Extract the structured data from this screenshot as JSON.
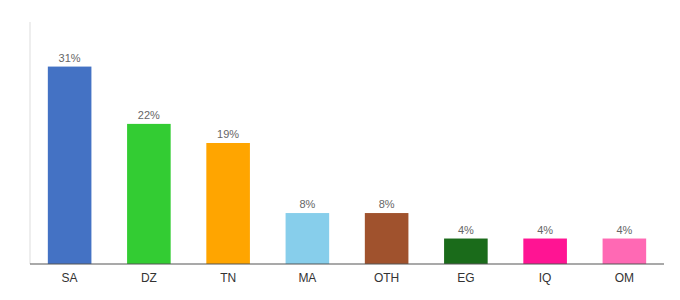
{
  "chart_data": {
    "type": "bar",
    "categories": [
      "SA",
      "DZ",
      "TN",
      "MA",
      "OTH",
      "EG",
      "IQ",
      "OM"
    ],
    "values": [
      31,
      22,
      19,
      8,
      8,
      4,
      4,
      4
    ],
    "value_labels": [
      "31%",
      "22%",
      "19%",
      "8%",
      "8%",
      "4%",
      "4%",
      "4%"
    ],
    "colors": [
      "#4472C4",
      "#33CC33",
      "#FFA500",
      "#87CEEB",
      "#A0522D",
      "#1A6B1A",
      "#FF1493",
      "#FF69B4"
    ],
    "ylim": [
      0,
      38
    ],
    "data_labels": true,
    "tick_labels": "x",
    "grid": false
  }
}
